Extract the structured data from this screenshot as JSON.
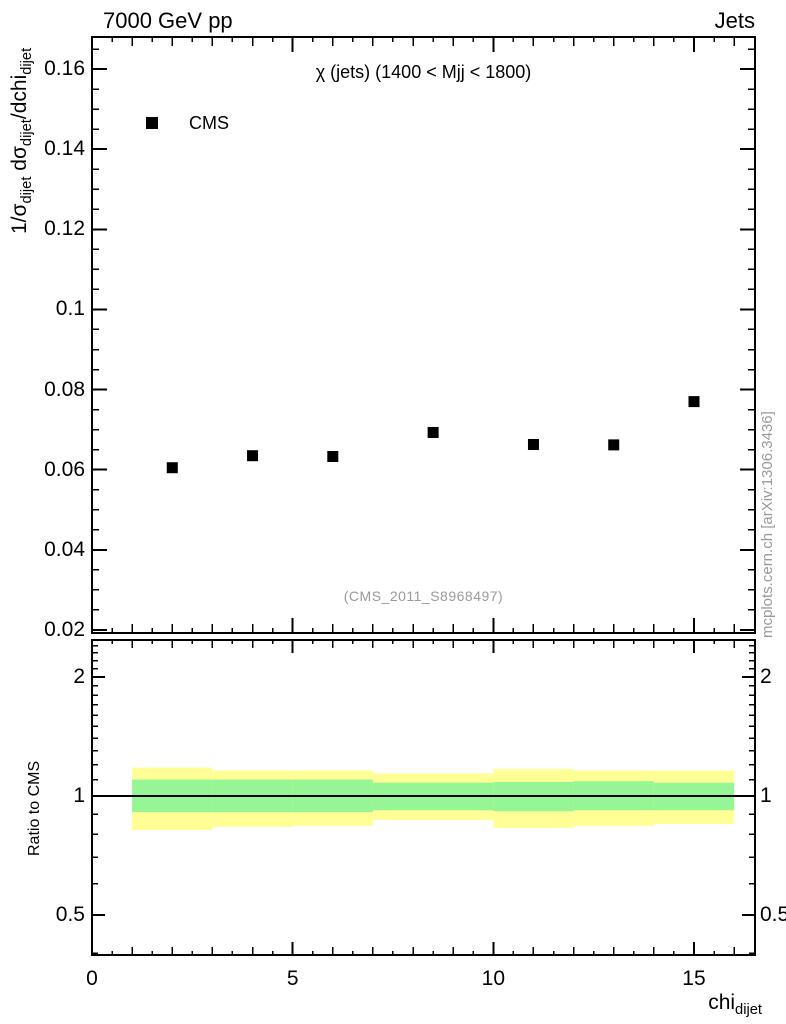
{
  "header": {
    "left_title": "7000 GeV pp",
    "right_title": "Jets"
  },
  "watermark": "(CMS_2011_S8968497)",
  "side_note": "mcplots.cern.ch [arXiv:1306.3436]",
  "colors": {
    "frame": "#000000",
    "marker": "#000000",
    "yellow_band": "#ffff96",
    "green_band": "#96f696",
    "muted_text": "#9a9a9a"
  },
  "chart_data": [
    {
      "type": "scatter",
      "panel": "main",
      "title": "χ (jets) (1400 < Mjj < 1800)",
      "xlabel_parts": [
        {
          "text": "chi"
        },
        {
          "sub": "dijet"
        }
      ],
      "ylabel_parts": [
        {
          "text": "1/σ"
        },
        {
          "sub": "dijet"
        },
        {
          "text": " dσ"
        },
        {
          "sub": "dijet"
        },
        {
          "text": "/dchi"
        },
        {
          "sub": "dijet"
        }
      ],
      "xlim": [
        0,
        16.52
      ],
      "ylim": [
        0.01925,
        0.168
      ],
      "grid": false,
      "legend_position": "top-left",
      "xticks": [
        {
          "value": 0,
          "label": "0"
        },
        {
          "value": 5,
          "label": "5"
        },
        {
          "value": 10,
          "label": "10"
        },
        {
          "value": 15,
          "label": "15"
        }
      ],
      "yticks": [
        {
          "value": 0.02,
          "label": "0.02"
        },
        {
          "value": 0.04,
          "label": "0.04"
        },
        {
          "value": 0.06,
          "label": "0.06"
        },
        {
          "value": 0.08,
          "label": "0.08"
        },
        {
          "value": 0.1,
          "label": "0.1"
        },
        {
          "value": 0.12,
          "label": "0.12"
        },
        {
          "value": 0.14,
          "label": "0.14"
        },
        {
          "value": 0.16,
          "label": "0.16"
        }
      ],
      "series": [
        {
          "name": "CMS",
          "marker": "filled-square",
          "color": "#000000",
          "x": [
            2,
            4,
            6,
            8.5,
            11,
            13,
            15
          ],
          "y": [
            0.0605,
            0.0635,
            0.0633,
            0.0693,
            0.0663,
            0.0662,
            0.077
          ]
        }
      ]
    },
    {
      "type": "ratio-band",
      "panel": "ratio",
      "ylabel": "Ratio to CMS",
      "yscale": "log",
      "xlim": [
        0,
        16.52
      ],
      "ylim": [
        0.396,
        2.48
      ],
      "reference_line": 1.0,
      "yticks": [
        {
          "value": 2,
          "label": "2"
        },
        {
          "value": 1,
          "label": "1"
        },
        {
          "value": 0.5,
          "label": "0.5"
        }
      ],
      "bin_edges": [
        1,
        3,
        5,
        7,
        10,
        12,
        14,
        16
      ],
      "bands": [
        {
          "name": "outer-uncertainty",
          "color": "#ffff96",
          "lo": [
            0.82,
            0.835,
            0.84,
            0.87,
            0.83,
            0.84,
            0.85
          ],
          "hi": [
            1.18,
            1.16,
            1.16,
            1.14,
            1.17,
            1.16,
            1.16
          ]
        },
        {
          "name": "inner-uncertainty",
          "color": "#96f696",
          "lo": [
            0.91,
            0.91,
            0.91,
            0.92,
            0.915,
            0.92,
            0.92
          ],
          "hi": [
            1.1,
            1.1,
            1.1,
            1.08,
            1.085,
            1.09,
            1.08
          ]
        }
      ]
    }
  ]
}
